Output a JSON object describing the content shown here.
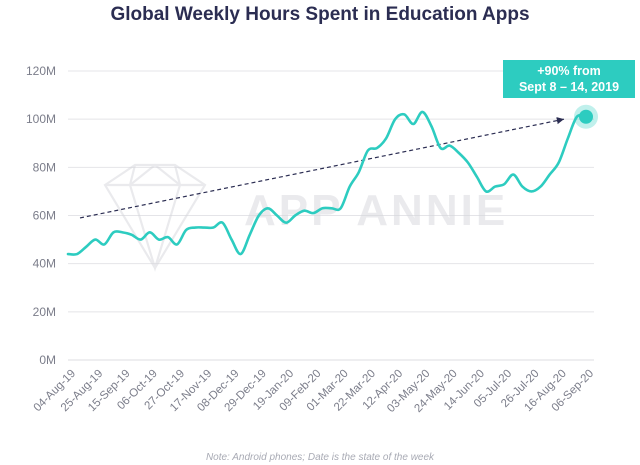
{
  "title": "Global Weekly Hours Spent in Education Apps",
  "note": "Note: Android phones; Date is the state of the week",
  "watermark": "APP ANNIE",
  "callout": {
    "line1": "+90% from",
    "line2": "Sept 8 – 14, 2019"
  },
  "colors": {
    "line": "#2dccc0",
    "title": "#2b2d52",
    "grid": "#e4e4e8",
    "trend": "#2b2d52"
  },
  "chart_data": {
    "type": "line",
    "title": "Global Weekly Hours Spent in Education Apps",
    "xlabel": "",
    "ylabel": "",
    "ylim": [
      0,
      120
    ],
    "y_unit": "M",
    "y_ticks": [
      {
        "value": 0,
        "label": "0M"
      },
      {
        "value": 20,
        "label": "20M"
      },
      {
        "value": 40,
        "label": "40M"
      },
      {
        "value": 60,
        "label": "60M"
      },
      {
        "value": 80,
        "label": "80M"
      },
      {
        "value": 100,
        "label": "100M"
      },
      {
        "value": 120,
        "label": "120M"
      }
    ],
    "x_tick_labels": [
      "04-Aug-19",
      "25-Aug-19",
      "15-Sep-19",
      "06-Oct-19",
      "27-Oct-19",
      "17-Nov-19",
      "08-Dec-19",
      "29-Dec-19",
      "19-Jan-20",
      "09-Feb-20",
      "01-Mar-20",
      "22-Mar-20",
      "12-Apr-20",
      "03-May-20",
      "24-May-20",
      "14-Jun-20",
      "05-Jul-20",
      "26-Jul-20",
      "16-Aug-20",
      "06-Sep-20"
    ],
    "tick_every_weeks": 3,
    "weeks": [
      "04-Aug-19",
      "11-Aug-19",
      "18-Aug-19",
      "25-Aug-19",
      "01-Sep-19",
      "08-Sep-19",
      "15-Sep-19",
      "22-Sep-19",
      "29-Sep-19",
      "06-Oct-19",
      "13-Oct-19",
      "20-Oct-19",
      "27-Oct-19",
      "03-Nov-19",
      "10-Nov-19",
      "17-Nov-19",
      "24-Nov-19",
      "01-Dec-19",
      "08-Dec-19",
      "15-Dec-19",
      "22-Dec-19",
      "29-Dec-19",
      "05-Jan-20",
      "12-Jan-20",
      "19-Jan-20",
      "26-Jan-20",
      "02-Feb-20",
      "09-Feb-20",
      "16-Feb-20",
      "23-Feb-20",
      "01-Mar-20",
      "08-Mar-20",
      "15-Mar-20",
      "22-Mar-20",
      "29-Mar-20",
      "05-Apr-20",
      "12-Apr-20",
      "19-Apr-20",
      "26-Apr-20",
      "03-May-20",
      "10-May-20",
      "17-May-20",
      "24-May-20",
      "31-May-20",
      "07-Jun-20",
      "14-Jun-20",
      "21-Jun-20",
      "28-Jun-20",
      "05-Jul-20",
      "12-Jul-20",
      "19-Jul-20",
      "26-Jul-20",
      "02-Aug-20",
      "09-Aug-20",
      "16-Aug-20",
      "23-Aug-20",
      "30-Aug-20",
      "06-Sep-20"
    ],
    "series": [
      {
        "values": [
          44,
          44,
          47,
          50,
          48,
          53,
          53,
          52,
          50,
          53,
          50,
          51,
          48,
          54,
          55,
          55,
          55,
          57,
          50,
          44,
          52,
          60,
          63,
          60,
          57,
          60,
          62,
          61,
          63,
          63,
          63,
          72,
          78,
          87,
          88,
          92,
          100,
          102,
          98,
          103,
          97,
          88,
          89,
          86,
          82,
          76,
          70,
          72,
          73,
          77,
          72,
          70,
          72,
          77,
          82,
          92,
          101,
          101
        ]
      }
    ],
    "trendline": {
      "start": {
        "x": "04-Aug-19",
        "y": 59
      },
      "end": {
        "x": "06-Sep-20",
        "y": 101
      }
    },
    "highlight": {
      "x": "06-Sep-20",
      "y": 101
    },
    "grid": true,
    "legend": "none"
  }
}
